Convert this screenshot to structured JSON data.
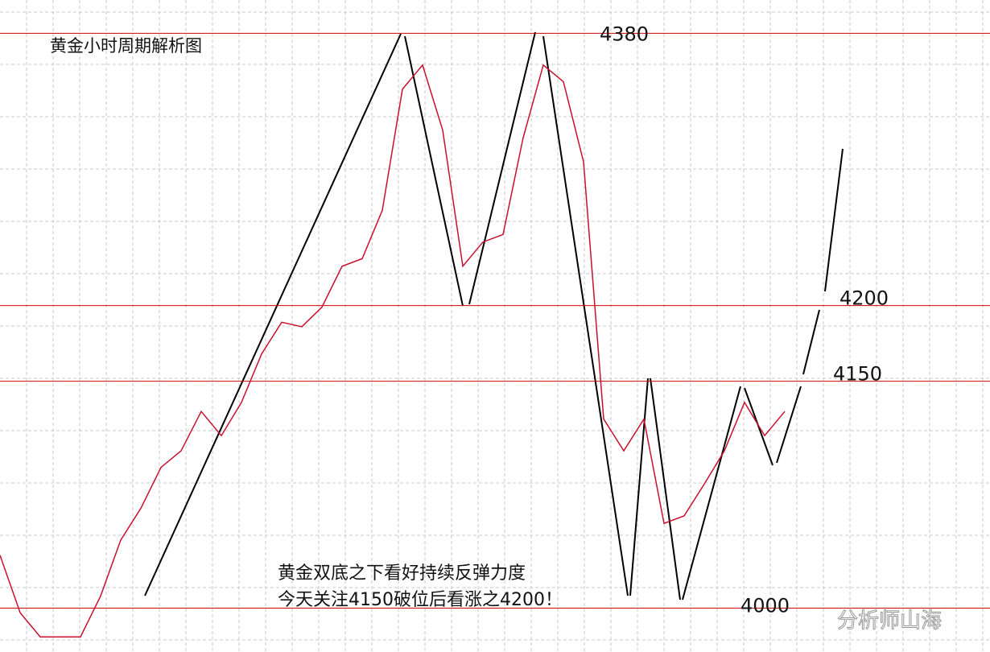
{
  "chart_data": {
    "type": "line",
    "title": "黄金小时周期解析图",
    "annotations": [
      "黄金双底之下看好持续反弹力度",
      "今天关注4150破位后看涨之4200！"
    ],
    "watermark": "分析师山海",
    "levels": [
      4380,
      4200,
      4150,
      4000
    ],
    "level_color": "#d40000",
    "x": [
      0,
      1,
      2,
      3,
      4,
      5,
      6,
      7,
      8,
      9,
      10,
      11,
      12,
      13,
      14,
      15,
      16,
      17,
      18,
      19,
      20,
      21,
      22,
      23,
      24,
      25,
      26,
      27,
      28,
      29,
      30,
      31,
      32,
      33,
      34,
      35,
      36,
      37,
      38,
      39
    ],
    "series": [
      {
        "name": "黄金",
        "color": "#c8102e",
        "values": [
          4035,
          3997,
          3981,
          3981,
          3981,
          4008,
          4045,
          4066,
          4093,
          4104,
          4130,
          4114,
          4136,
          4168,
          4189,
          4186,
          4199,
          4226,
          4231,
          4263,
          4343,
          4359,
          4316,
          4226,
          4242,
          4247,
          4311,
          4359,
          4348,
          4295,
          4125,
          4104,
          4125,
          4056,
          4061,
          4082,
          4104,
          4136,
          4114,
          4130
        ]
      }
    ],
    "xlim": [
      0,
      49.2
    ],
    "ylim": [
      3971,
      4402
    ]
  }
}
